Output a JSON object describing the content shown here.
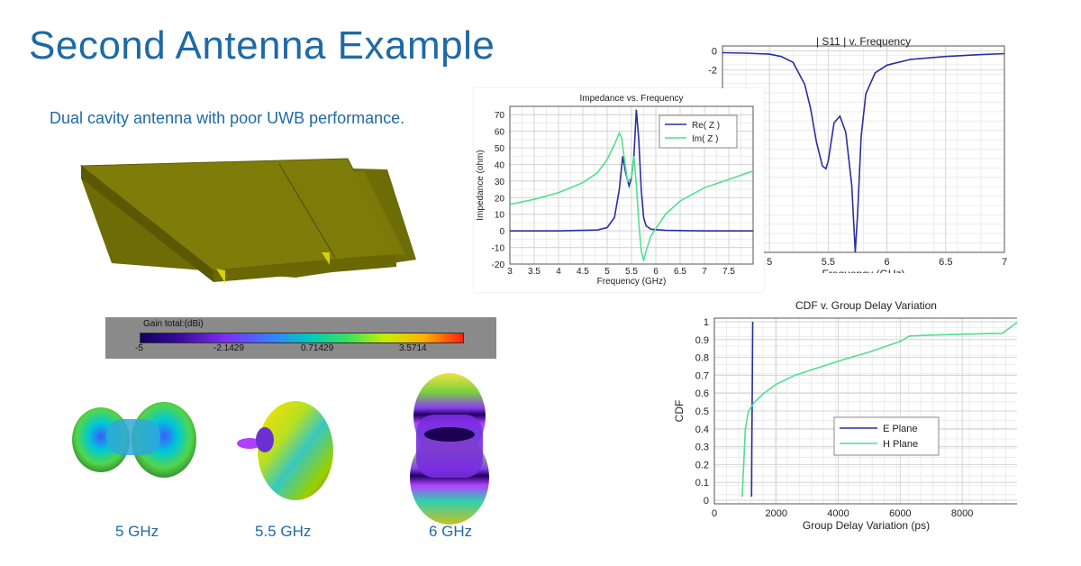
{
  "slide": {
    "title": "Second Antenna Example",
    "subtitle": "Dual cavity antenna with poor UWB performance."
  },
  "colorbar": {
    "label": "Gain total:(dBi)",
    "ticks": [
      "-5",
      "-2.1429",
      "0.71429",
      "3.5714"
    ]
  },
  "patterns": [
    {
      "label": "5 GHz"
    },
    {
      "label": "5.5 GHz"
    },
    {
      "label": "6 GHz"
    }
  ],
  "colors": {
    "title_blue": "#1f6aa5",
    "series_blue": "#2b2f9e",
    "series_green": "#4fe08f",
    "antenna_olive": "#7c7a08"
  },
  "chart_data": [
    {
      "id": "s11",
      "type": "line",
      "title": "| S11 | v. Frequency",
      "xlabel": "Frequency (GHz)",
      "ylabel": "",
      "xlim": [
        4.6,
        7.0
      ],
      "ylim": [
        -21,
        0.5
      ],
      "xticks": [
        "5",
        "5.5",
        "6",
        "6.5",
        "7"
      ],
      "yticks": [
        "0",
        "-2"
      ],
      "grid": true,
      "series": [
        {
          "x": [
            4.6,
            4.8,
            5.0,
            5.1,
            5.2,
            5.3,
            5.35,
            5.4,
            5.45,
            5.48,
            5.5,
            5.55,
            5.6,
            5.65,
            5.7,
            5.73,
            5.75,
            5.78,
            5.82,
            5.9,
            6.0,
            6.2,
            6.5,
            6.8,
            7.0
          ],
          "y": [
            -0.2,
            -0.25,
            -0.35,
            -0.6,
            -1.2,
            -3.5,
            -6.0,
            -9.5,
            -12.0,
            -12.3,
            -11.5,
            -7.5,
            -6.8,
            -8.5,
            -14.0,
            -21.0,
            -17.0,
            -9.0,
            -4.5,
            -2.3,
            -1.5,
            -0.9,
            -0.6,
            -0.4,
            -0.3
          ]
        }
      ]
    },
    {
      "id": "impedance",
      "type": "line",
      "title": "Impedance vs. Frequency",
      "xlabel": "Frequency (GHz)",
      "ylabel": "Impedance (ohm)",
      "xlim": [
        3.0,
        8.0
      ],
      "ylim": [
        -20,
        75
      ],
      "xticks": [
        "3",
        "3.5",
        "4",
        "4.5",
        "5",
        "5.5",
        "6",
        "6.5",
        "7",
        "7.5"
      ],
      "yticks": [
        "70",
        "60",
        "50",
        "40",
        "30",
        "20",
        "10",
        "0",
        "-10",
        "-20"
      ],
      "grid": true,
      "legend": "top-right",
      "series": [
        {
          "name": "Re( Z )",
          "x": [
            3.0,
            4.0,
            4.8,
            5.0,
            5.15,
            5.25,
            5.32,
            5.38,
            5.45,
            5.5,
            5.55,
            5.6,
            5.65,
            5.7,
            5.75,
            5.8,
            5.9,
            6.2,
            7.0,
            8.0
          ],
          "y": [
            0,
            0,
            0.5,
            2,
            8,
            25,
            45,
            35,
            27,
            32,
            45,
            73,
            55,
            25,
            8,
            3,
            1,
            0.3,
            0,
            0
          ]
        },
        {
          "name": "Im( Z )",
          "x": [
            3.0,
            3.5,
            4.0,
            4.5,
            4.8,
            5.0,
            5.15,
            5.25,
            5.3,
            5.35,
            5.42,
            5.5,
            5.55,
            5.6,
            5.65,
            5.7,
            5.75,
            5.8,
            5.9,
            6.2,
            6.5,
            7.0,
            8.0
          ],
          "y": [
            16,
            19,
            23,
            29,
            35,
            43,
            52,
            59,
            56,
            44,
            30,
            32,
            45,
            28,
            5,
            -12,
            -18,
            -12,
            -3,
            10,
            18,
            26,
            36
          ]
        }
      ]
    },
    {
      "id": "cdf",
      "type": "line",
      "title": "CDF v. Group Delay Variation",
      "xlabel": "Group Delay Variation (ps)",
      "ylabel": "CDF",
      "xlim": [
        0,
        9800
      ],
      "ylim": [
        -0.02,
        1.02
      ],
      "xticks": [
        "0",
        "2000",
        "4000",
        "6000",
        "8000"
      ],
      "yticks": [
        "1",
        "0.9",
        "0.8",
        "0.7",
        "0.6",
        "0.5",
        "0.4",
        "0.3",
        "0.2",
        "0.1",
        "0"
      ],
      "grid": true,
      "legend": "center-right",
      "series": [
        {
          "name": "E Plane",
          "x": [
            1200,
            1210,
            1220,
            1230,
            1240
          ],
          "y": [
            0.02,
            0.3,
            0.55,
            0.8,
            1.0
          ]
        },
        {
          "name": "H Plane",
          "x": [
            900,
            1000,
            1100,
            1300,
            1600,
            2000,
            2600,
            3300,
            4200,
            5000,
            6000,
            6300,
            7000,
            8000,
            9300,
            9800
          ],
          "y": [
            0.02,
            0.4,
            0.5,
            0.55,
            0.6,
            0.65,
            0.7,
            0.74,
            0.79,
            0.83,
            0.89,
            0.92,
            0.925,
            0.93,
            0.935,
            1.0
          ]
        }
      ]
    }
  ]
}
